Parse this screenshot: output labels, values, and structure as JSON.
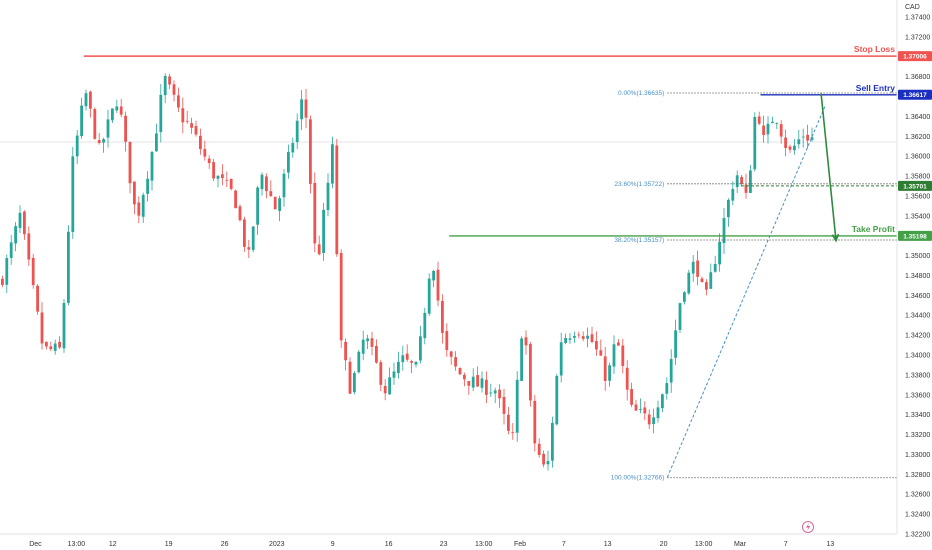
{
  "chart_data": {
    "type": "candlestick",
    "currency": "CAD",
    "ylim": [
      1.322,
      1.375
    ],
    "y_ticks": [
      "1.37400",
      "1.37200",
      "1.37000",
      "1.36800",
      "1.36600",
      "1.36400",
      "1.36200",
      "1.36000",
      "1.35800",
      "1.35600",
      "1.35400",
      "1.35200",
      "1.35000",
      "1.34800",
      "1.34600",
      "1.34400",
      "1.34200",
      "1.34000",
      "1.33800",
      "1.33600",
      "1.33400",
      "1.33200",
      "1.33000",
      "1.32800",
      "1.32600",
      "1.32400",
      "1.32200"
    ],
    "x_ticks": [
      {
        "label": "Dec",
        "pos": 0.038
      },
      {
        "label": "13:00",
        "pos": 0.082
      },
      {
        "label": "12",
        "pos": 0.121
      },
      {
        "label": "19",
        "pos": 0.181
      },
      {
        "label": "26",
        "pos": 0.241
      },
      {
        "label": "2023",
        "pos": 0.297
      },
      {
        "label": "9",
        "pos": 0.357
      },
      {
        "label": "16",
        "pos": 0.417
      },
      {
        "label": "23",
        "pos": 0.476
      },
      {
        "label": "13:00",
        "pos": 0.519
      },
      {
        "label": "Feb",
        "pos": 0.558
      },
      {
        "label": "7",
        "pos": 0.605
      },
      {
        "label": "13",
        "pos": 0.652
      },
      {
        "label": "20",
        "pos": 0.712
      },
      {
        "label": "13:00",
        "pos": 0.755
      },
      {
        "label": "Mar",
        "pos": 0.794
      },
      {
        "label": "7",
        "pos": 0.843
      },
      {
        "label": "13",
        "pos": 0.891
      }
    ],
    "levels": {
      "stop_loss": {
        "label": "Stop Loss",
        "value": 1.37006,
        "tag": "1.37006",
        "color": "#ef5350"
      },
      "sell_entry": {
        "label": "Sell Entry",
        "value": 1.36617,
        "tag": "1.36617",
        "color": "#1a2fbf"
      },
      "take_profit": {
        "label": "Take Profit",
        "value": 1.35198,
        "tag": "1.35198",
        "color": "#43a047"
      },
      "fib_236_tag": {
        "value": 1.35701,
        "tag": "1.35701",
        "color": "#2e7d32"
      }
    },
    "fibonacci": [
      {
        "label": "0.00%(1.36635)",
        "value": 1.36635
      },
      {
        "label": "23.60%(1.35722)",
        "value": 1.35722
      },
      {
        "label": "38.20%(1.35157)",
        "value": 1.35157
      },
      {
        "label": "100.00%(1.32766)",
        "value": 1.32766
      }
    ],
    "anchors": [
      {
        "t": 0.0,
        "p": 1.3475
      },
      {
        "t": 0.02,
        "p": 1.354
      },
      {
        "t": 0.045,
        "p": 1.3405
      },
      {
        "t": 0.064,
        "p": 1.3405
      },
      {
        "t": 0.076,
        "p": 1.359
      },
      {
        "t": 0.09,
        "p": 1.3665
      },
      {
        "t": 0.105,
        "p": 1.3605
      },
      {
        "t": 0.125,
        "p": 1.366
      },
      {
        "t": 0.145,
        "p": 1.3535
      },
      {
        "t": 0.163,
        "p": 1.361
      },
      {
        "t": 0.175,
        "p": 1.3678
      },
      {
        "t": 0.19,
        "p": 1.3645
      },
      {
        "t": 0.205,
        "p": 1.3625
      },
      {
        "t": 0.225,
        "p": 1.3585
      },
      {
        "t": 0.25,
        "p": 1.356
      },
      {
        "t": 0.265,
        "p": 1.3495
      },
      {
        "t": 0.278,
        "p": 1.3585
      },
      {
        "t": 0.295,
        "p": 1.3545
      },
      {
        "t": 0.31,
        "p": 1.3605
      },
      {
        "t": 0.325,
        "p": 1.3665
      },
      {
        "t": 0.338,
        "p": 1.3485
      },
      {
        "t": 0.356,
        "p": 1.3612
      },
      {
        "t": 0.363,
        "p": 1.3415
      },
      {
        "t": 0.375,
        "p": 1.3365
      },
      {
        "t": 0.39,
        "p": 1.342
      },
      {
        "t": 0.412,
        "p": 1.3365
      },
      {
        "t": 0.43,
        "p": 1.3395
      },
      {
        "t": 0.446,
        "p": 1.3385
      },
      {
        "t": 0.462,
        "p": 1.3505
      },
      {
        "t": 0.475,
        "p": 1.3405
      },
      {
        "t": 0.49,
        "p": 1.3382
      },
      {
        "t": 0.51,
        "p": 1.337
      },
      {
        "t": 0.53,
        "p": 1.3365
      },
      {
        "t": 0.548,
        "p": 1.3308
      },
      {
        "t": 0.56,
        "p": 1.3445
      },
      {
        "t": 0.57,
        "p": 1.3318
      },
      {
        "t": 0.585,
        "p": 1.3278
      },
      {
        "t": 0.6,
        "p": 1.3415
      },
      {
        "t": 0.618,
        "p": 1.3428
      },
      {
        "t": 0.635,
        "p": 1.3412
      },
      {
        "t": 0.65,
        "p": 1.3375
      },
      {
        "t": 0.66,
        "p": 1.3418
      },
      {
        "t": 0.675,
        "p": 1.3345
      },
      {
        "t": 0.695,
        "p": 1.3335
      },
      {
        "t": 0.715,
        "p": 1.3375
      },
      {
        "t": 0.73,
        "p": 1.3465
      },
      {
        "t": 0.745,
        "p": 1.3495
      },
      {
        "t": 0.755,
        "p": 1.3452
      },
      {
        "t": 0.77,
        "p": 1.3515
      },
      {
        "t": 0.788,
        "p": 1.3585
      },
      {
        "t": 0.8,
        "p": 1.3555
      },
      {
        "t": 0.81,
        "p": 1.3655
      },
      {
        "t": 0.818,
        "p": 1.3615
      },
      {
        "t": 0.83,
        "p": 1.3645
      },
      {
        "t": 0.845,
        "p": 1.3602
      },
      {
        "t": 0.86,
        "p": 1.3622
      },
      {
        "t": 0.872,
        "p": 1.3617
      }
    ],
    "projection": [
      {
        "t": 0.881,
        "p": 1.3663
      },
      {
        "t": 0.897,
        "p": 1.3515
      }
    ],
    "trendline": [
      {
        "t": 0.716,
        "p": 1.3277
      },
      {
        "t": 0.886,
        "p": 1.3652
      }
    ],
    "colors": {
      "up": "#26a69a",
      "down": "#ef5350"
    }
  },
  "footer": {
    "bottom_right_icon": "lightning-icon"
  }
}
